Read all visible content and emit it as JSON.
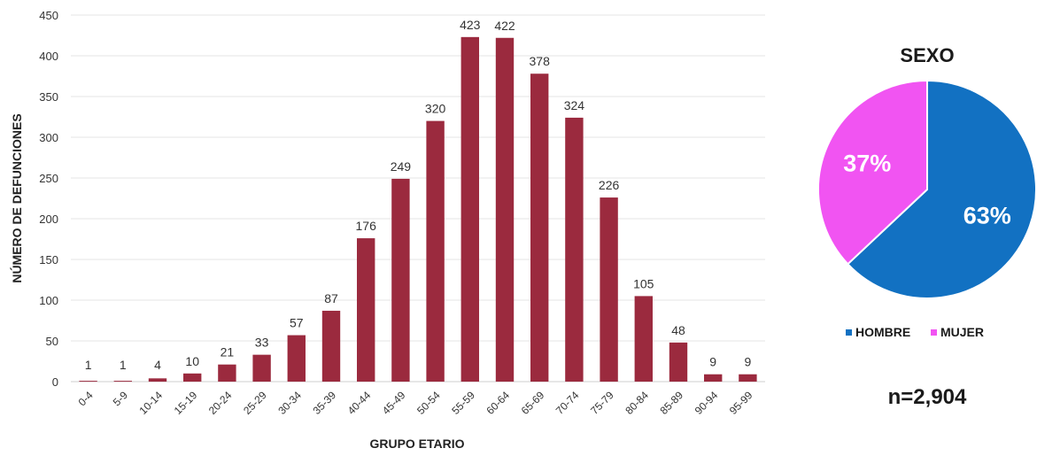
{
  "chart_data": [
    {
      "type": "bar",
      "xlabel": "GRUPO ETARIO",
      "ylabel": "NÚMERO DE DEFUNCIONES",
      "ylim": [
        0,
        450
      ],
      "yticks": [
        0,
        50,
        100,
        150,
        200,
        250,
        300,
        350,
        400,
        450
      ],
      "grid": true,
      "categories": [
        "0-4",
        "5-9",
        "10-14",
        "15-19",
        "20-24",
        "25-29",
        "30-34",
        "35-39",
        "40-44",
        "45-49",
        "50-54",
        "55-59",
        "60-64",
        "65-69",
        "70-74",
        "75-79",
        "80-84",
        "85-89",
        "90-94",
        "95-99"
      ],
      "values": [
        1,
        1,
        4,
        10,
        21,
        33,
        57,
        87,
        176,
        249,
        320,
        423,
        422,
        378,
        324,
        226,
        105,
        48,
        9,
        9
      ],
      "color": "#9B2A3E"
    },
    {
      "type": "pie",
      "title": "SEXO",
      "slices": [
        {
          "name": "HOMBRE",
          "value": 63,
          "label": "63%",
          "color": "#1271C2"
        },
        {
          "name": "MUJER",
          "value": 37,
          "label": "37%",
          "color": "#F154F2"
        }
      ],
      "legend_position": "bottom",
      "note": "n=2,904"
    }
  ]
}
